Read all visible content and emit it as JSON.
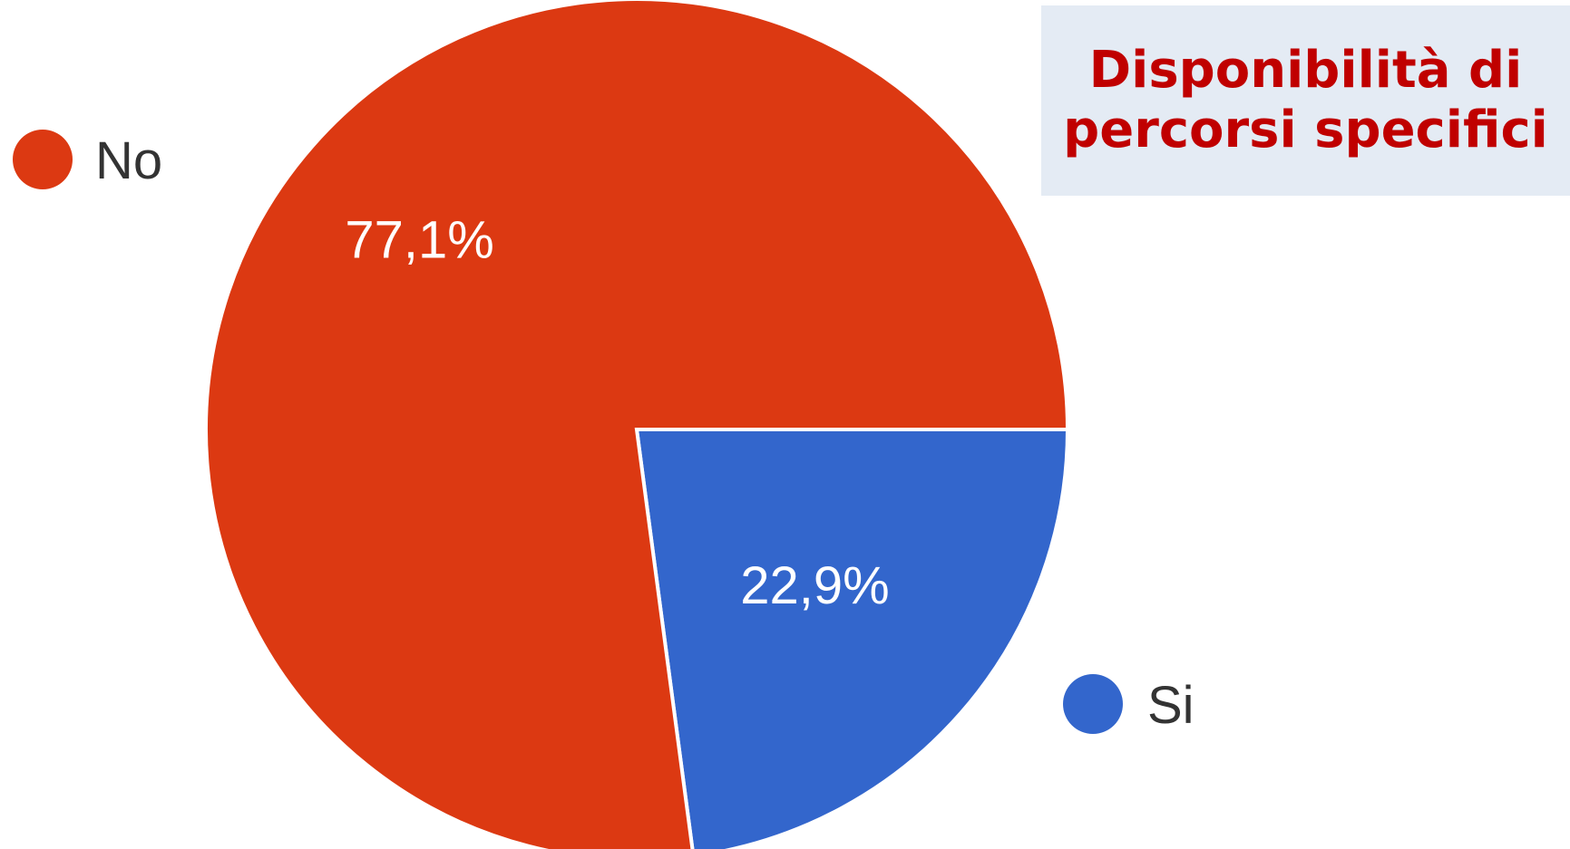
{
  "chart_data": {
    "type": "pie",
    "title": "Disponibilità di percorsi specifici",
    "categories": [
      "No",
      "Si"
    ],
    "values": [
      77.1,
      22.9
    ],
    "labels": [
      "77,1%",
      "22,9%"
    ],
    "colors": [
      "#dc3912",
      "#3366cc"
    ],
    "legend": "beside slices",
    "title_color": "#c00000",
    "title_background": "#e4ebf4"
  }
}
